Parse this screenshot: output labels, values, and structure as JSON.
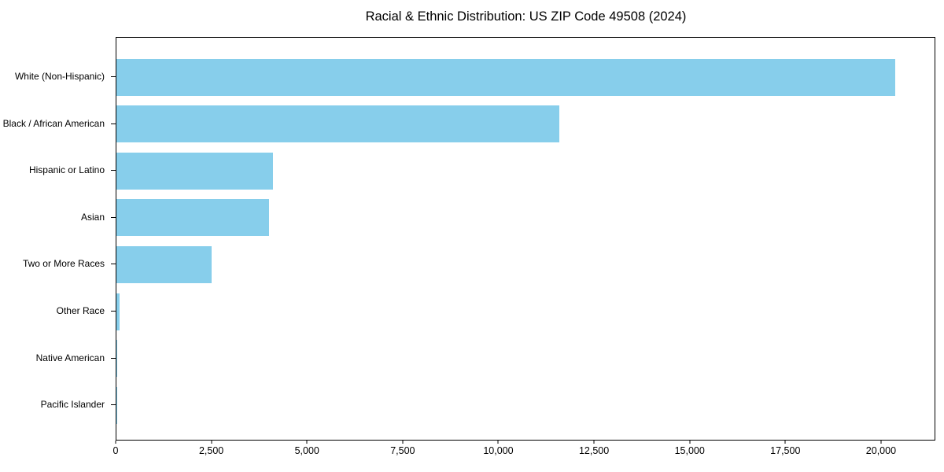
{
  "chart_data": {
    "type": "bar",
    "orientation": "horizontal",
    "title": "Racial & Ethnic Distribution: US ZIP Code 49508 (2024)",
    "categories": [
      "White (Non-Hispanic)",
      "Black / African American",
      "Hispanic or Latino",
      "Asian",
      "Two or More Races",
      "Other Race",
      "Native American",
      "Pacific Islander"
    ],
    "values": [
      20400,
      11600,
      4100,
      4000,
      2500,
      80,
      30,
      10
    ],
    "bar_color": "#87CEEB",
    "axis_color": "#000000",
    "text_color": "#000000",
    "xlabel": "",
    "ylabel": "",
    "xlim": [
      0,
      21420
    ],
    "x_tick_values": [
      0,
      2500,
      5000,
      7500,
      10000,
      12500,
      15000,
      17500,
      20000
    ],
    "x_tick_labels": [
      "0",
      "2,500",
      "5,000",
      "7,500",
      "10,000",
      "12,500",
      "15,000",
      "17,500",
      "20,000"
    ],
    "grid": false,
    "legend": "none"
  }
}
